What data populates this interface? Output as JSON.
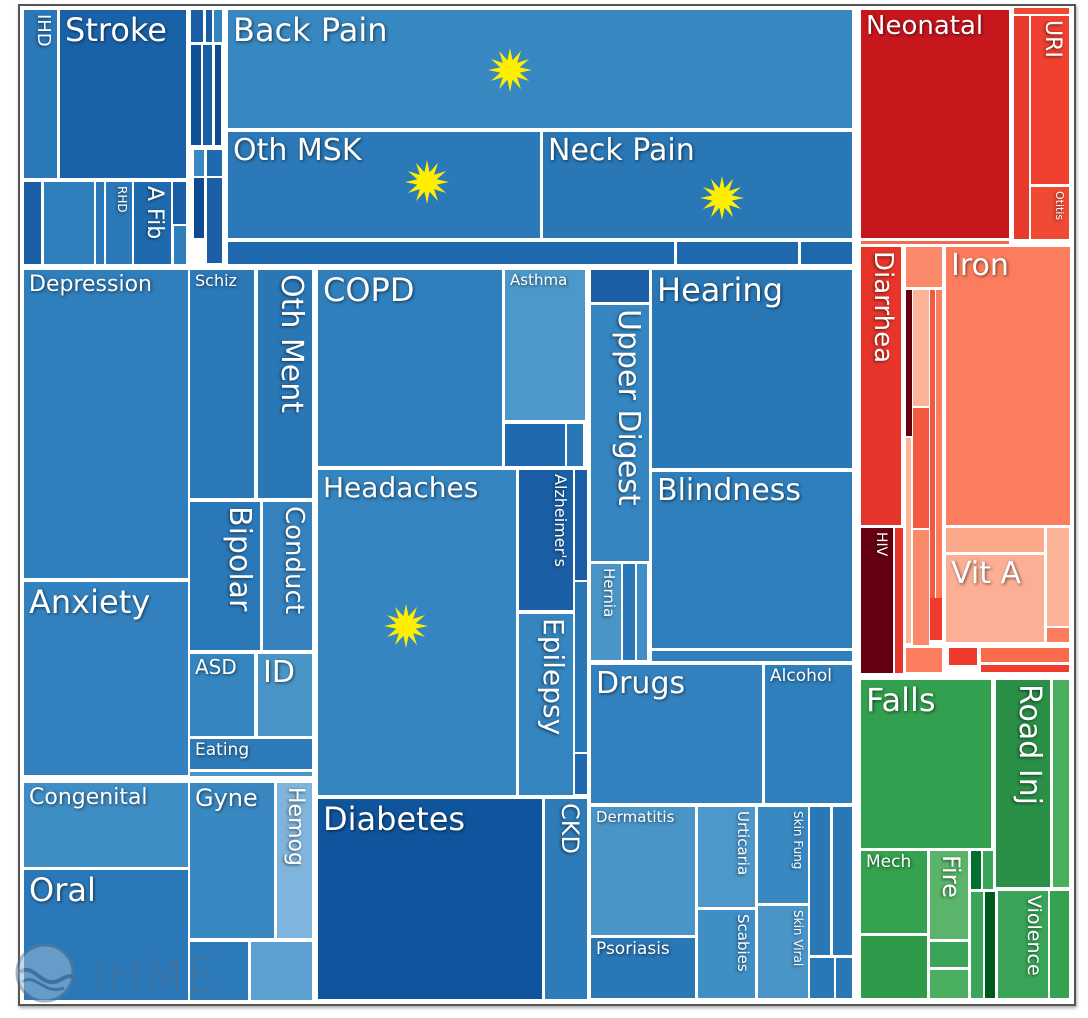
{
  "chart_data": {
    "type": "treemap",
    "title": "",
    "cells": [
      {
        "label": "IHD",
        "color": "#2a78b8"
      },
      {
        "label": "Stroke",
        "color": "#1a62a8"
      },
      {
        "label": "",
        "color": "#1a5fa5"
      },
      {
        "label": "",
        "color": "#2f7fbd"
      },
      {
        "label": "",
        "color": "#2a78b8"
      },
      {
        "label": "RHD",
        "color": "#2b79b8"
      },
      {
        "label": "A Fib",
        "color": "#1f6aae"
      },
      {
        "label": "",
        "color": "#1a5fa5"
      },
      {
        "label": "",
        "color": "#2f7fbd"
      },
      {
        "label": "",
        "color": "#1a5fa5"
      },
      {
        "label": "",
        "color": "#1a5fa5"
      },
      {
        "label": "",
        "color": "#3585c0"
      },
      {
        "label": "",
        "color": "#0f4f95"
      },
      {
        "label": "",
        "color": "#1a5fa5"
      },
      {
        "label": "",
        "color": "#0d4a8f"
      },
      {
        "label": "",
        "color": "#3a88c2"
      },
      {
        "label": "",
        "color": "#1f6aae"
      },
      {
        "label": "",
        "color": "#0d4a8f"
      },
      {
        "label": "",
        "color": "#1a5fa5"
      },
      {
        "label": "Back Pain",
        "color": "#3787c0"
      },
      {
        "label": "Oth MSK",
        "color": "#2b79b8"
      },
      {
        "label": "Neck Pain",
        "color": "#2a77b6"
      },
      {
        "label": "",
        "color": "#1e68ad"
      },
      {
        "label": "",
        "color": "#1e68ad"
      },
      {
        "label": "",
        "color": "#1e68ad"
      },
      {
        "label": "Depression",
        "color": "#2f7fbd"
      },
      {
        "label": "Anxiety",
        "color": "#3382bf"
      },
      {
        "label": "Schiz",
        "color": "#2c79b8"
      },
      {
        "label": "Oth Ment",
        "color": "#2a77b6"
      },
      {
        "label": "Bipolar",
        "color": "#2b78b8"
      },
      {
        "label": "Conduct",
        "color": "#3582bf"
      },
      {
        "label": "ASD",
        "color": "#3585c0"
      },
      {
        "label": "ID",
        "color": "#4a95c8"
      },
      {
        "label": "Eating",
        "color": "#2d7bb8"
      },
      {
        "label": "",
        "color": "#4a95c8"
      },
      {
        "label": "Congenital",
        "color": "#3f8ec6"
      },
      {
        "label": "Oral",
        "color": "#2b78b8"
      },
      {
        "label": "Gyne",
        "color": "#3a88c2"
      },
      {
        "label": "Hemog",
        "color": "#7fb5dc"
      },
      {
        "label": "",
        "color": "#2d7bb8"
      },
      {
        "label": "",
        "color": "#5ba0d0"
      },
      {
        "label": "COPD",
        "color": "#2f7fbd"
      },
      {
        "label": "Asthma",
        "color": "#4d98cb"
      },
      {
        "label": "",
        "color": "#1f6aae"
      },
      {
        "label": "",
        "color": "#2a77b6"
      },
      {
        "label": "Headaches",
        "color": "#3585c0"
      },
      {
        "label": "Alzheimer's",
        "color": "#1a5fa5"
      },
      {
        "label": "Epilepsy",
        "color": "#3585c0"
      },
      {
        "label": "",
        "color": "#1a5fa5"
      },
      {
        "label": "",
        "color": "#2a77b6"
      },
      {
        "label": "",
        "color": "#1f6aae"
      },
      {
        "label": "Diabetes",
        "color": "#0f559d"
      },
      {
        "label": "CKD",
        "color": "#2d7bb8"
      },
      {
        "label": "",
        "color": "#1a5fa5"
      },
      {
        "label": "Upper Digest",
        "color": "#3585c0"
      },
      {
        "label": "Hernia",
        "color": "#4a95c8"
      },
      {
        "label": "",
        "color": "#2a77b6"
      },
      {
        "label": "",
        "color": "#3f8ec6"
      },
      {
        "label": "Hearing",
        "color": "#2a77b6"
      },
      {
        "label": "Blindness",
        "color": "#2f7fbd"
      },
      {
        "label": "",
        "color": "#2f7fbd"
      },
      {
        "label": "Drugs",
        "color": "#3382bf"
      },
      {
        "label": "Alcohol",
        "color": "#2f7fbd"
      },
      {
        "label": "Dermatitis",
        "color": "#4a95c8"
      },
      {
        "label": "Psoriasis",
        "color": "#2a77b6"
      },
      {
        "label": "Urticaria",
        "color": "#4d98cb"
      },
      {
        "label": "Scabies",
        "color": "#3f8ec6"
      },
      {
        "label": "Skin Fung",
        "color": "#3a88c2"
      },
      {
        "label": "Skin Viral",
        "color": "#4a95c8"
      },
      {
        "label": "",
        "color": "#2a77b6"
      },
      {
        "label": "",
        "color": "#2a77b6"
      },
      {
        "label": "",
        "color": "#2a77b6"
      },
      {
        "label": "",
        "color": "#2a77b6"
      },
      {
        "label": "Neonatal",
        "color": "#c8161d"
      },
      {
        "label": "",
        "color": "#f04a35"
      },
      {
        "label": "",
        "color": "#e83a2c"
      },
      {
        "label": "URI",
        "color": "#f04030"
      },
      {
        "label": "Otitis",
        "color": "#f04a35"
      },
      {
        "label": "",
        "color": "#f26a50"
      },
      {
        "label": "Diarrhea",
        "color": "#e8352b"
      },
      {
        "label": "HIV",
        "color": "#650010"
      },
      {
        "label": "",
        "color": "#e8352b"
      },
      {
        "label": "",
        "color": "#fb8a6a"
      },
      {
        "label": "",
        "color": "#650010"
      },
      {
        "label": "",
        "color": "#fcb498"
      },
      {
        "label": "",
        "color": "#f4583f"
      },
      {
        "label": "",
        "color": "#f4583f"
      },
      {
        "label": "",
        "color": "#fb7d5d"
      },
      {
        "label": "",
        "color": "#fb8a6a"
      },
      {
        "label": "",
        "color": "#fcb498"
      },
      {
        "label": "",
        "color": "#ef3b2c"
      },
      {
        "label": "Iron",
        "color": "#fb7d5d"
      },
      {
        "label": "",
        "color": "#fca88a"
      },
      {
        "label": "Vit A",
        "color": "#fcaf94"
      },
      {
        "label": "",
        "color": "#fcb498"
      },
      {
        "label": "",
        "color": "#fb7d5d"
      },
      {
        "label": "",
        "color": "#fb7d5d"
      },
      {
        "label": "",
        "color": "#ef3b2c"
      },
      {
        "label": "",
        "color": "#fb6a4a"
      },
      {
        "label": "",
        "color": "#ef3b2c"
      },
      {
        "label": "Falls",
        "color": "#33a04f"
      },
      {
        "label": "Road Inj",
        "color": "#2a8f47"
      },
      {
        "label": "",
        "color": "#4aae5f"
      },
      {
        "label": "Mech",
        "color": "#35a250"
      },
      {
        "label": "",
        "color": "#2f9a4a"
      },
      {
        "label": "Fire",
        "color": "#5ab56a"
      },
      {
        "label": "",
        "color": "#3aa558"
      },
      {
        "label": "",
        "color": "#4aae5f"
      },
      {
        "label": "",
        "color": "#00702f"
      },
      {
        "label": "",
        "color": "#3aa558"
      },
      {
        "label": "",
        "color": "#3aa558"
      },
      {
        "label": "",
        "color": "#005a20"
      },
      {
        "label": "Violence",
        "color": "#3aa558"
      },
      {
        "label": "",
        "color": "#35a250"
      }
    ],
    "highlight_color": "#ffee00",
    "highlighted": [
      "Back Pain",
      "Oth MSK",
      "Neck Pain",
      "Headaches"
    ]
  },
  "logo": {
    "text": "IHME"
  }
}
